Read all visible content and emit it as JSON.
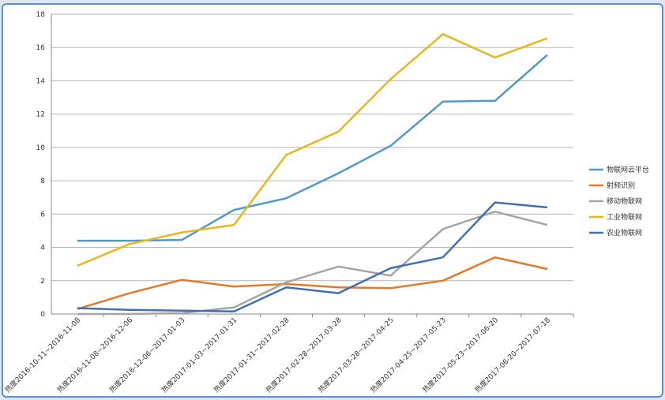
{
  "chart_data": {
    "type": "line",
    "categories": [
      "热度2016-10-11~2016-11-08",
      "热度2016-11-08~2016-12-06",
      "热度2016-12-06~2017-01-03",
      "热度2017-01-03~2017-01-31",
      "热度2017-01-31~2017-02-28",
      "热度2017-02-28~2017-03-28",
      "热度2017-03-28~2017-04-25",
      "热度2017-04-25~2017-05-23",
      "热度2017-05-23~2017-06-20",
      "热度2017-06-20~2017-07-18"
    ],
    "series": [
      {
        "name": "物联网云平台",
        "color": "#4f9ac9",
        "values": [
          4.4,
          4.4,
          4.45,
          6.25,
          6.95,
          8.45,
          10.1,
          12.75,
          12.8,
          15.55
        ]
      },
      {
        "name": "射频识别",
        "color": "#e07b29",
        "values": [
          0.3,
          1.25,
          2.05,
          1.65,
          1.8,
          1.6,
          1.55,
          2.0,
          3.4,
          2.7
        ]
      },
      {
        "name": "移动物联网",
        "color": "#a5a5a5",
        "values": [
          0,
          0,
          0.05,
          0.4,
          1.9,
          2.85,
          2.3,
          5.1,
          6.15,
          5.35
        ]
      },
      {
        "name": "工业物联网",
        "color": "#e8b81b",
        "values": [
          2.9,
          4.2,
          4.9,
          5.35,
          9.55,
          10.95,
          14.1,
          16.8,
          15.4,
          16.55
        ]
      },
      {
        "name": "农业物联网",
        "color": "#3f6fb5",
        "values": [
          0.35,
          0.25,
          0.2,
          0.15,
          1.6,
          1.25,
          2.75,
          3.4,
          6.7,
          6.4
        ]
      }
    ],
    "ylim": [
      0,
      18
    ],
    "yticks": [
      0,
      2,
      4,
      6,
      8,
      10,
      12,
      14,
      16,
      18
    ],
    "grid": true,
    "legend": "right"
  }
}
